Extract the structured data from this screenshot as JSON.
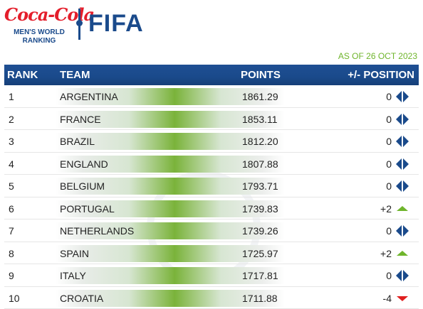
{
  "header": {
    "logo_text": "Coca-Cola",
    "subtitle_line1": "MEN'S WORLD",
    "subtitle_line2": "RANKING",
    "fifa_text": "FIFA"
  },
  "as_of": "AS OF 26 OCT 2023",
  "table": {
    "headers": {
      "rank": "RANK",
      "team": "TEAM",
      "points": "POINTS",
      "position": "+/- POSITION"
    },
    "rows": [
      {
        "rank": "1",
        "team": "ARGENTINA",
        "points": "1861.29",
        "change": "0",
        "trend": "same"
      },
      {
        "rank": "2",
        "team": "FRANCE",
        "points": "1853.11",
        "change": "0",
        "trend": "same"
      },
      {
        "rank": "3",
        "team": "BRAZIL",
        "points": "1812.20",
        "change": "0",
        "trend": "same"
      },
      {
        "rank": "4",
        "team": "ENGLAND",
        "points": "1807.88",
        "change": "0",
        "trend": "same"
      },
      {
        "rank": "5",
        "team": "BELGIUM",
        "points": "1793.71",
        "change": "0",
        "trend": "same"
      },
      {
        "rank": "6",
        "team": "PORTUGAL",
        "points": "1739.83",
        "change": "+2",
        "trend": "up"
      },
      {
        "rank": "7",
        "team": "NETHERLANDS",
        "points": "1739.26",
        "change": "0",
        "trend": "same"
      },
      {
        "rank": "8",
        "team": "SPAIN",
        "points": "1725.97",
        "change": "+2",
        "trend": "up"
      },
      {
        "rank": "9",
        "team": "ITALY",
        "points": "1717.81",
        "change": "0",
        "trend": "same"
      },
      {
        "rank": "10",
        "team": "CROATIA",
        "points": "1711.88",
        "change": "-4",
        "trend": "down"
      }
    ]
  },
  "colors": {
    "brand_blue": "#1a4a8b",
    "coke_red": "#e41e2b",
    "accent_green": "#6fb52c",
    "down_red": "#e02020"
  },
  "icons": {
    "same": "left-right-arrows-icon",
    "up": "triangle-up-icon",
    "down": "triangle-down-icon"
  }
}
